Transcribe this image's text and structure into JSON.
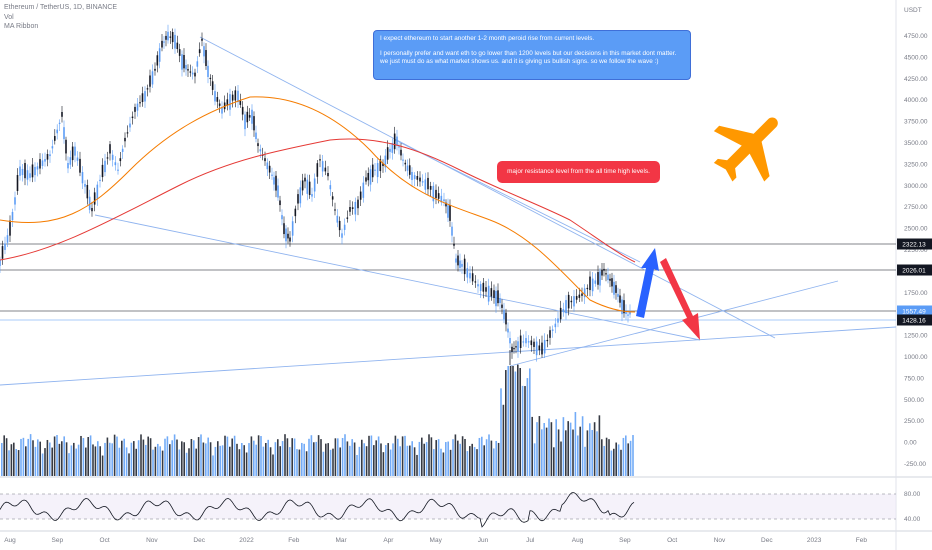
{
  "legend": {
    "title": "Ethereum / TetherUS, 1D, BINANCE",
    "vol": "Vol",
    "ribbon": "MA Ribbon"
  },
  "note": {
    "line1": "I expect ethereum to start another 1-2 month peroid rise from current levels.",
    "line2": "I personally prefer and want eth to go lower than 1200 levels but our decisions in this market dont matter.",
    "line3": "we just must do as what market shows us. and it is giving us bullish signs. so we follow the wave :)"
  },
  "callout": "major resistance level from the all time high levels.",
  "colors": {
    "up": "#5b9cf6",
    "down": "#131722",
    "ma_orange": "#f57c00",
    "ma_red": "#e53935",
    "trendline": "#90b4ef",
    "rsi": "#131722",
    "rsi_band": "#ede7f6",
    "arrow_up": "#2962ff",
    "arrow_down": "#f23645",
    "plane": "#ff9800"
  },
  "icons": {
    "plane": "airplane-icon"
  },
  "chart_data": [
    {
      "type": "candlestick",
      "currency_label": "USDT",
      "y_ticks": [
        4750,
        4500,
        4250,
        4000,
        3750,
        3500,
        3250,
        3000,
        2750,
        2500,
        2250,
        1750,
        1250,
        1000,
        750,
        500,
        250,
        0,
        -250
      ],
      "y_tick_labels": [
        "4750.00",
        "4500.00",
        "4250.00",
        "4000.00",
        "3750.00",
        "3500.00",
        "3250.00",
        "3000.00",
        "2750.00",
        "2500.00",
        "2250.00",
        "1750.00",
        "1250.00",
        "1000.00",
        "750.00",
        "500.00",
        "250.00",
        "0.00",
        "-250.00"
      ],
      "x_ticks": [
        "Aug",
        "Sep",
        "Oct",
        "Nov",
        "Dec",
        "2022",
        "Feb",
        "Mar",
        "Apr",
        "May",
        "Jun",
        "Jul",
        "Aug",
        "Sep",
        "Oct",
        "Nov",
        "Dec",
        "2023",
        "Feb"
      ],
      "price_series": {
        "name": "ETHUSDT 1D close (approx.)",
        "x": [
          "2021-08",
          "2021-09",
          "2021-10",
          "2021-11",
          "2021-12",
          "2022-01",
          "2022-02",
          "2022-03",
          "2022-04",
          "2022-05",
          "2022-06",
          "2022-07",
          "2022-08",
          "2022-09"
        ],
        "values": [
          2600,
          3400,
          3600,
          4700,
          4100,
          3100,
          2500,
          2900,
          3500,
          2500,
          1100,
          1300,
          1900,
          1560
        ]
      },
      "ma_orange": [
        2100,
        2600,
        2900,
        3300,
        3600,
        3500,
        3200,
        3000,
        2900,
        2500,
        1900,
        1600,
        1500,
        1500
      ],
      "ma_red": [
        1800,
        2100,
        2500,
        2800,
        3100,
        3300,
        3400,
        3400,
        3300,
        3000,
        2600,
        2300,
        2200,
        2100
      ],
      "horizontal_levels": [
        {
          "value": 2322.13,
          "label": "2322.13"
        },
        {
          "value": 2026.01,
          "label": "2026.01"
        },
        {
          "value": 1557.49,
          "label": "1557.49"
        },
        {
          "value": 1428.16,
          "label": "1428.16"
        }
      ],
      "annotations": [
        "I expect ethereum to start another 1-2 month peroid rise from current levels.",
        "major resistance level from the all time high levels."
      ]
    },
    {
      "type": "bar",
      "name": "Vol",
      "note": "volume histogram below price, blue = up day, dark = down day"
    },
    {
      "type": "line",
      "name": "RSI",
      "y_ticks": [
        80,
        40
      ],
      "y_tick_labels": [
        "80.00",
        "40.00"
      ],
      "values": [
        55,
        62,
        48,
        58,
        45,
        50,
        40,
        52,
        60,
        42,
        30,
        45,
        65,
        42
      ]
    }
  ]
}
